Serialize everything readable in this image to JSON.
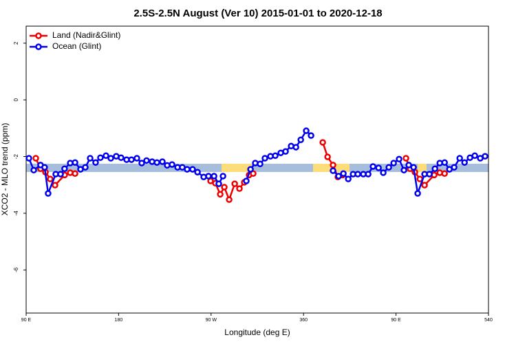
{
  "chart_data": {
    "type": "line",
    "title": "2.5S-2.5N August (Ver 10)   2015-01-01 to 2020-12-18",
    "xlabel": "Longitude (deg E)",
    "ylabel": "XCO2 - MLO trend (ppm)",
    "xlim": [
      90,
      540
    ],
    "xticks": [
      {
        "value": 90,
        "label": "90 E"
      },
      180,
      {
        "value": 270,
        "label": "90 W"
      },
      360,
      {
        "value": 450,
        "label": "90 E"
      },
      540
    ],
    "ylim": [
      -7.52,
      2.6
    ],
    "yticks": [
      2,
      0,
      -2,
      -4,
      -6
    ],
    "legend": "top-left",
    "series": [
      {
        "name": "Land (Nadir&Glint)",
        "color": "#ee0000",
        "x": [
          99.4,
          104,
          108.8,
          113.4,
          118.1,
          127.5,
          132.9,
          137.6,
          null,
          269.5,
          274.2,
          278.9,
          282.9,
          287.6,
          293,
          297.6,
          302.3,
          307,
          311,
          null,
          378.7,
          383.4,
          388.7,
          393.4,
          398.1,
          null,
          459.7,
          463.7,
          468.4,
          473.2,
          477.8,
          487.2,
          492.6,
          497.3
        ],
        "values": [
          -2.06,
          -2.43,
          -2.55,
          -2.79,
          -3.01,
          -2.65,
          -2.57,
          -2.6,
          null,
          -2.86,
          -2.94,
          -3.33,
          -3.08,
          -3.52,
          -2.96,
          -3.13,
          -2.91,
          -2.65,
          -2.6,
          null,
          -1.5,
          -2.01,
          -2.3,
          -2.72,
          -2.65,
          null,
          -2.06,
          -2.43,
          -2.55,
          -2.79,
          -3.01,
          -2.65,
          -2.57,
          -2.6
        ]
      },
      {
        "name": "Ocean (Glint)",
        "color": "#0000ee",
        "x": [
          92.7,
          97.4,
          104,
          108,
          111.4,
          118.8,
          123.5,
          127.4,
          132.9,
          137.6,
          142.9,
          147.6,
          152.3,
          157.6,
          162.3,
          167.7,
          172.4,
          177.7,
          182.4,
          187.8,
          192.5,
          197.8,
          202.5,
          207.2,
          212.6,
          217.3,
          222.6,
          227.3,
          232,
          237.4,
          242,
          246.7,
          252,
          256.8,
          262.8,
          267.5,
          272.9,
          277.5,
          281.6,
          null,
          304.3,
          308.4,
          313,
          317.7,
          322.4,
          327.8,
          332.5,
          337.8,
          342.5,
          347.9,
          352.6,
          357.3,
          362.6,
          367.3,
          null,
          388.7,
          394.1,
          398.8,
          403.5,
          408.2,
          412.8,
          418.2,
          422.9,
          427.6,
          433,
          437.6,
          443,
          447.7,
          453,
          457.7,
          462.4,
          467.1,
          471.1,
          477.8,
          482.5,
          487.9,
          492.6,
          497.3,
          502,
          506.6,
          512,
          516.7,
          522,
          526.7,
          532,
          536.7
        ],
        "values": [
          -2.06,
          -2.48,
          -2.3,
          -2.38,
          -3.3,
          -2.62,
          -2.62,
          -2.43,
          -2.23,
          -2.21,
          -2.45,
          -2.38,
          -2.06,
          -2.21,
          -2.04,
          -1.97,
          -2.06,
          -1.99,
          -2.04,
          -2.11,
          -2.11,
          -2.06,
          -2.23,
          -2.14,
          -2.18,
          -2.21,
          -2.18,
          -2.31,
          -2.28,
          -2.38,
          -2.38,
          -2.45,
          -2.45,
          -2.55,
          -2.72,
          -2.69,
          -2.69,
          -2.96,
          -2.69,
          null,
          -2.86,
          -2.45,
          -2.23,
          -2.26,
          -2.06,
          -1.99,
          -1.97,
          -1.87,
          -1.82,
          -1.63,
          -1.67,
          -1.41,
          -1.09,
          -1.26,
          null,
          -2.5,
          -2.69,
          -2.6,
          -2.79,
          -2.62,
          -2.62,
          -2.62,
          -2.62,
          -2.35,
          -2.4,
          -2.57,
          -2.38,
          -2.23,
          -2.09,
          -2.48,
          -2.3,
          -2.38,
          -3.3,
          -2.62,
          -2.62,
          -2.43,
          -2.23,
          -2.21,
          -2.45,
          -2.38,
          -2.06,
          -2.21,
          -2.04,
          -1.97,
          -2.06,
          -1.99
        ]
      }
    ]
  }
}
